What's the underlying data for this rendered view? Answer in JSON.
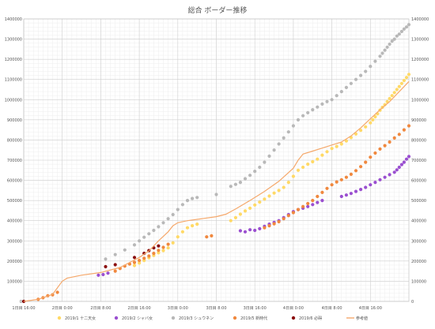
{
  "chart_data": {
    "type": "scatter",
    "title": "総合 ボーダー推移",
    "x_unit": "hours since 1日目 16:00",
    "xlim": [
      0,
      80
    ],
    "ylim": [
      0,
      1400000
    ],
    "y_ticks": [
      0,
      100000,
      200000,
      300000,
      400000,
      500000,
      600000,
      700000,
      800000,
      900000,
      1000000,
      1100000,
      1200000,
      1300000,
      1400000
    ],
    "x_ticks": [
      {
        "x": 0,
        "label": "1日目 16:00"
      },
      {
        "x": 8,
        "label": "2日目 0:00"
      },
      {
        "x": 16,
        "label": "2日目 8:00"
      },
      {
        "x": 24,
        "label": "2日目 16:00"
      },
      {
        "x": 32,
        "label": "3日目 0:00"
      },
      {
        "x": 40,
        "label": "3日目 8:00"
      },
      {
        "x": 48,
        "label": "3日目 16:00"
      },
      {
        "x": 56,
        "label": "4日目 0:00"
      },
      {
        "x": 64,
        "label": "4日目 8:00"
      },
      {
        "x": 72,
        "label": "4日目 16:00"
      }
    ],
    "grid": true,
    "legend_position": "bottom",
    "series": [
      {
        "name": "2019/1 十二天女",
        "color": "#ffd966",
        "kind": "scatter",
        "points": [
          [
            23,
            178000
          ],
          [
            24,
            190000
          ],
          [
            25,
            203000
          ],
          [
            26,
            216000
          ],
          [
            27,
            228000
          ],
          [
            28,
            241000
          ],
          [
            29,
            252000
          ],
          [
            30,
            265000
          ],
          [
            31,
            290000
          ],
          [
            32,
            320000
          ],
          [
            33,
            345000
          ],
          [
            34,
            365000
          ],
          [
            35,
            375000
          ],
          [
            36,
            383000
          ],
          [
            43,
            400000
          ],
          [
            44,
            415000
          ],
          [
            45,
            432000
          ],
          [
            46,
            448000
          ],
          [
            47,
            462000
          ],
          [
            48,
            478000
          ],
          [
            49,
            492000
          ],
          [
            50,
            507000
          ],
          [
            51,
            522000
          ],
          [
            52,
            537000
          ],
          [
            53,
            550000
          ],
          [
            54,
            565000
          ],
          [
            55,
            590000
          ],
          [
            56,
            620000
          ],
          [
            57,
            650000
          ],
          [
            58,
            665000
          ],
          [
            59,
            680000
          ],
          [
            60,
            692000
          ],
          [
            61,
            705000
          ],
          [
            62,
            725000
          ],
          [
            63,
            742000
          ],
          [
            64,
            758000
          ],
          [
            65,
            768000
          ],
          [
            66,
            780000
          ],
          [
            67,
            795000
          ],
          [
            68,
            812000
          ],
          [
            69,
            830000
          ],
          [
            70,
            848000
          ],
          [
            71,
            865000
          ],
          [
            72,
            885000
          ],
          [
            72.5,
            900000
          ],
          [
            73,
            915000
          ],
          [
            73.5,
            930000
          ],
          [
            74,
            948000
          ],
          [
            74.5,
            962000
          ],
          [
            75,
            975000
          ],
          [
            75.5,
            990000
          ],
          [
            76,
            1005000
          ],
          [
            76.5,
            1020000
          ],
          [
            77,
            1035000
          ],
          [
            77.5,
            1050000
          ],
          [
            78,
            1065000
          ],
          [
            78.5,
            1080000
          ],
          [
            79,
            1095000
          ],
          [
            79.5,
            1110000
          ],
          [
            80,
            1125000
          ]
        ]
      },
      {
        "name": "2019/2 シャバ女",
        "color": "#9a4fd0",
        "kind": "scatter",
        "points": [
          [
            15.5,
            130000
          ],
          [
            16.5,
            133000
          ],
          [
            17.5,
            140000
          ],
          [
            45,
            350000
          ],
          [
            46,
            345000
          ],
          [
            47,
            355000
          ],
          [
            48,
            352000
          ],
          [
            49,
            360000
          ],
          [
            50,
            372000
          ],
          [
            51,
            383000
          ],
          [
            52,
            392000
          ],
          [
            53,
            400000
          ],
          [
            54,
            415000
          ],
          [
            55,
            430000
          ],
          [
            56,
            445000
          ],
          [
            57,
            455000
          ],
          [
            58,
            462000
          ],
          [
            59,
            470000
          ],
          [
            60,
            480000
          ],
          [
            61,
            490000
          ],
          [
            62,
            500000
          ],
          [
            66,
            520000
          ],
          [
            67,
            527000
          ],
          [
            68,
            535000
          ],
          [
            69,
            545000
          ],
          [
            70,
            555000
          ],
          [
            71,
            565000
          ],
          [
            72,
            578000
          ],
          [
            73,
            590000
          ],
          [
            74,
            603000
          ],
          [
            75,
            615000
          ],
          [
            76,
            628000
          ],
          [
            77,
            640000
          ],
          [
            77.5,
            652000
          ],
          [
            78,
            665000
          ],
          [
            78.5,
            678000
          ],
          [
            79,
            690000
          ],
          [
            79.5,
            705000
          ],
          [
            80,
            718000
          ]
        ]
      },
      {
        "name": "2019/3 シュウネン",
        "color": "#b8b8b8",
        "kind": "scatter",
        "points": [
          [
            17,
            210000
          ],
          [
            19,
            232000
          ],
          [
            21,
            255000
          ],
          [
            23,
            280000
          ],
          [
            24,
            300000
          ],
          [
            25,
            318000
          ],
          [
            26,
            335000
          ],
          [
            27,
            352000
          ],
          [
            28,
            370000
          ],
          [
            29,
            390000
          ],
          [
            30,
            410000
          ],
          [
            31,
            430000
          ],
          [
            32,
            455000
          ],
          [
            33,
            480000
          ],
          [
            34,
            500000
          ],
          [
            35,
            510000
          ],
          [
            36,
            515000
          ],
          [
            40,
            530000
          ],
          [
            43,
            570000
          ],
          [
            44,
            580000
          ],
          [
            45,
            590000
          ],
          [
            46,
            608000
          ],
          [
            47,
            625000
          ],
          [
            48,
            645000
          ],
          [
            49,
            665000
          ],
          [
            50,
            690000
          ],
          [
            51,
            720000
          ],
          [
            52,
            750000
          ],
          [
            53,
            780000
          ],
          [
            54,
            810000
          ],
          [
            55,
            840000
          ],
          [
            56,
            870000
          ],
          [
            57,
            900000
          ],
          [
            58,
            920000
          ],
          [
            59,
            935000
          ],
          [
            60,
            950000
          ],
          [
            61,
            963000
          ],
          [
            62,
            978000
          ],
          [
            63,
            990000
          ],
          [
            64,
            1000000
          ],
          [
            65,
            1020000
          ],
          [
            66,
            1040000
          ],
          [
            67,
            1060000
          ],
          [
            68,
            1080000
          ],
          [
            69,
            1100000
          ],
          [
            70,
            1120000
          ],
          [
            71,
            1140000
          ],
          [
            72,
            1165000
          ],
          [
            73,
            1190000
          ],
          [
            74,
            1215000
          ],
          [
            74.5,
            1230000
          ],
          [
            75,
            1245000
          ],
          [
            75.5,
            1260000
          ],
          [
            76,
            1275000
          ],
          [
            76.5,
            1290000
          ],
          [
            77,
            1300000
          ],
          [
            77.5,
            1315000
          ],
          [
            78,
            1325000
          ],
          [
            78.5,
            1338000
          ],
          [
            79,
            1350000
          ],
          [
            79.5,
            1360000
          ],
          [
            80,
            1372000
          ]
        ]
      },
      {
        "name": "2019/5 新時代",
        "color": "#f0883e",
        "kind": "scatter",
        "points": [
          [
            3,
            10000
          ],
          [
            4,
            18000
          ],
          [
            5,
            28000
          ],
          [
            6,
            33000
          ],
          [
            7,
            45000
          ],
          [
            19,
            150000
          ],
          [
            20,
            163000
          ],
          [
            21,
            175000
          ],
          [
            22,
            185000
          ],
          [
            23,
            193000
          ],
          [
            24,
            203000
          ],
          [
            25,
            214000
          ],
          [
            26,
            225000
          ],
          [
            27,
            238000
          ],
          [
            28,
            253000
          ],
          [
            29,
            268000
          ],
          [
            30,
            283000
          ],
          [
            38,
            320000
          ],
          [
            39,
            325000
          ],
          [
            50,
            365000
          ],
          [
            51,
            375000
          ],
          [
            52,
            385000
          ],
          [
            53,
            395000
          ],
          [
            54,
            410000
          ],
          [
            55,
            425000
          ],
          [
            56,
            440000
          ],
          [
            57,
            455000
          ],
          [
            58,
            470000
          ],
          [
            59,
            485000
          ],
          [
            60,
            500000
          ],
          [
            61,
            520000
          ],
          [
            62,
            540000
          ],
          [
            63,
            560000
          ],
          [
            64,
            578000
          ],
          [
            65,
            592000
          ],
          [
            66,
            603000
          ],
          [
            67,
            615000
          ],
          [
            68,
            630000
          ],
          [
            69,
            648000
          ],
          [
            70,
            668000
          ],
          [
            71,
            690000
          ],
          [
            72,
            715000
          ],
          [
            73,
            735000
          ],
          [
            74,
            755000
          ],
          [
            75,
            772000
          ],
          [
            76,
            790000
          ],
          [
            77,
            810000
          ],
          [
            78,
            828000
          ],
          [
            79,
            850000
          ],
          [
            80,
            870000
          ]
        ]
      },
      {
        "name": "2019/6 必碍",
        "color": "#8b0f0f",
        "kind": "scatter",
        "points": [
          [
            0,
            0
          ],
          [
            17,
            172000
          ],
          [
            19,
            182000
          ],
          [
            23,
            218000
          ],
          [
            25,
            238000
          ],
          [
            26,
            252000
          ],
          [
            27,
            265000
          ],
          [
            28,
            275000
          ]
        ]
      },
      {
        "name": "参考値",
        "color": "#f5a86b",
        "kind": "line",
        "points": [
          [
            0,
            0
          ],
          [
            3,
            10000
          ],
          [
            6,
            35000
          ],
          [
            8,
            100000
          ],
          [
            9,
            115000
          ],
          [
            12,
            130000
          ],
          [
            16,
            143000
          ],
          [
            20,
            168000
          ],
          [
            24,
            218000
          ],
          [
            26,
            250000
          ],
          [
            28,
            300000
          ],
          [
            30,
            345000
          ],
          [
            31,
            375000
          ],
          [
            32,
            390000
          ],
          [
            34,
            400000
          ],
          [
            37,
            410000
          ],
          [
            40,
            420000
          ],
          [
            42,
            432000
          ],
          [
            44,
            458000
          ],
          [
            47,
            500000
          ],
          [
            50,
            545000
          ],
          [
            53,
            595000
          ],
          [
            56,
            660000
          ],
          [
            57,
            700000
          ],
          [
            58,
            730000
          ],
          [
            60,
            745000
          ],
          [
            62,
            760000
          ],
          [
            64,
            775000
          ],
          [
            66,
            790000
          ],
          [
            68,
            820000
          ],
          [
            70,
            860000
          ],
          [
            72,
            905000
          ],
          [
            74,
            950000
          ],
          [
            76,
            990000
          ],
          [
            78,
            1040000
          ],
          [
            80,
            1090000
          ]
        ]
      }
    ]
  }
}
